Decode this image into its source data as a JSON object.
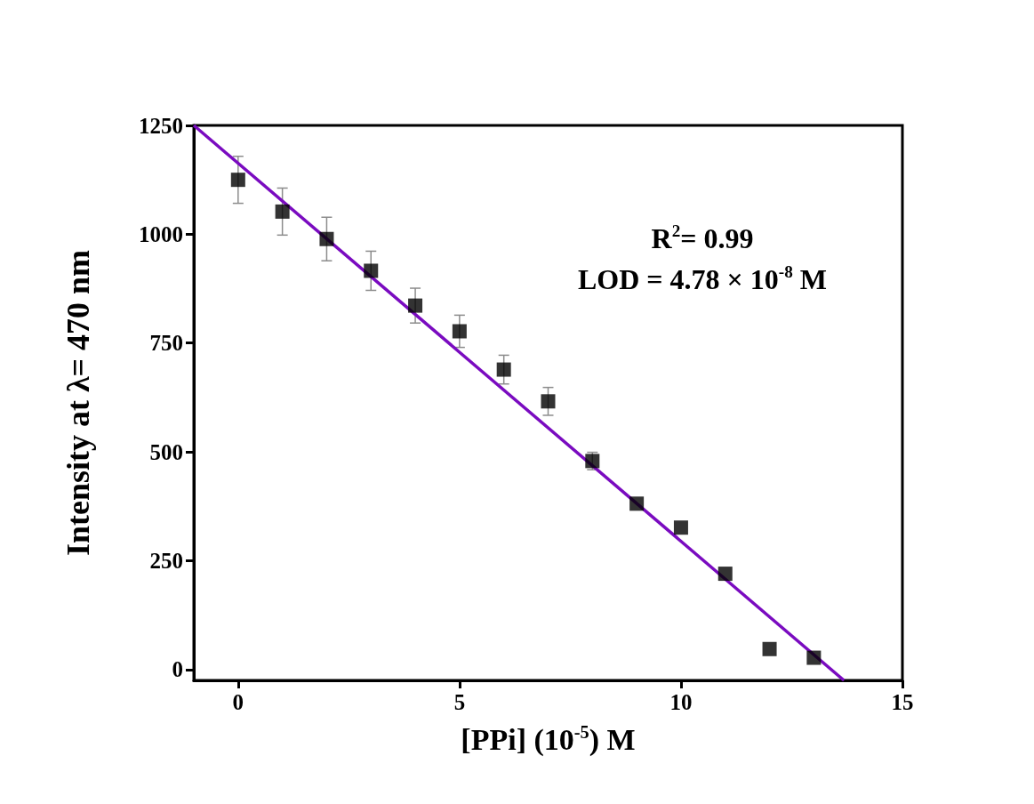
{
  "chart_data": {
    "type": "scatter",
    "xlabel": "[PPi] (10$^{-5}$) M",
    "ylabel": "Intensity at λ= 470 nm",
    "annotations": [
      "R$^{2}$= 0.99",
      "LOD = 4.78 × 10$^{-8}$ M"
    ],
    "xlim": [
      -1,
      15
    ],
    "xticks": [
      0,
      5,
      10,
      15
    ],
    "ylim": [
      -25,
      1250
    ],
    "yticks": [
      0,
      250,
      500,
      750,
      1000,
      1250
    ],
    "series": [
      {
        "marker": "square",
        "color": "#000000",
        "x": [
          0,
          1,
          2,
          3,
          4,
          5,
          6,
          7,
          8,
          9,
          10,
          11,
          12,
          13
        ],
        "values": [
          1125,
          1052,
          989,
          916,
          836,
          777,
          689,
          616,
          479,
          381,
          326,
          220,
          47,
          27
        ],
        "errors": [
          54,
          54,
          50,
          45,
          40,
          37,
          33,
          32,
          20,
          null,
          null,
          null,
          null,
          null
        ]
      },
      {
        "type": "line",
        "marker": "none",
        "line_style": "solid",
        "color": "#7a0bc0",
        "x": [
          -1,
          13.68
        ],
        "values": [
          1250,
          -25
        ]
      }
    ]
  }
}
